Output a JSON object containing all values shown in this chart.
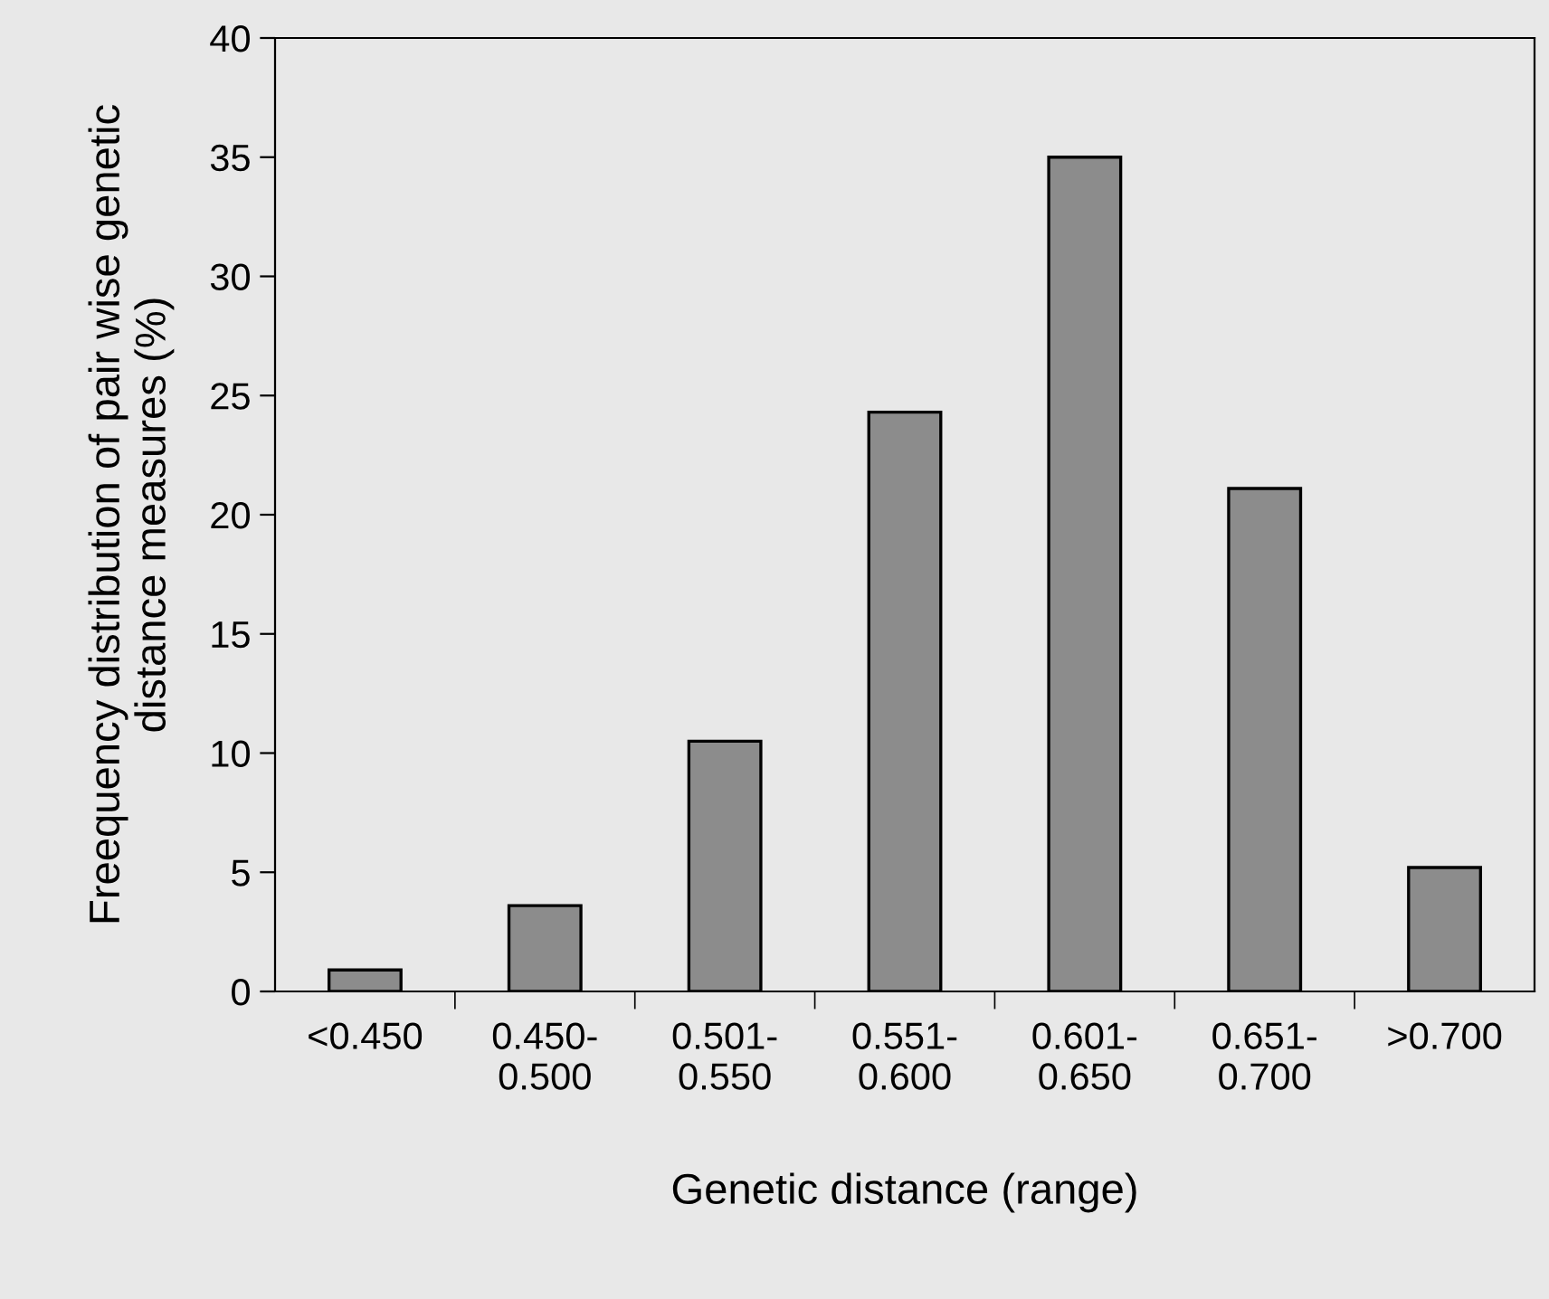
{
  "chart_data": {
    "type": "bar",
    "xlabel": "Genetic distance (range)",
    "ylabel": "Freequency distribution of pair wise genetic\ndistance measures (%)",
    "categories": [
      "<0.450",
      "0.450-\n0.500",
      "0.501-\n0.550",
      "0.551-\n0.600",
      "0.601-\n0.650",
      "0.651-\n0.700",
      ">0.700"
    ],
    "values": [
      0.9,
      3.6,
      10.5,
      24.3,
      35.0,
      21.1,
      5.2
    ],
    "color": "#8c8c8c",
    "ylim": [
      0,
      40
    ],
    "yticks": [
      0,
      5,
      10,
      15,
      20,
      25,
      30,
      35,
      40
    ],
    "grid": false
  }
}
